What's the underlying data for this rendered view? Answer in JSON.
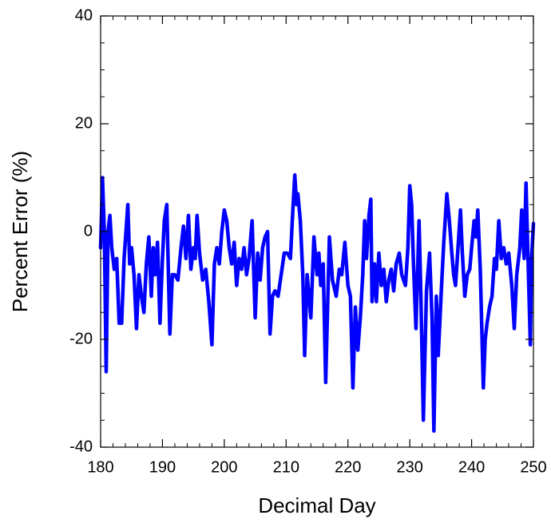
{
  "chart_data": {
    "type": "line",
    "xlabel": "Decimal Day",
    "ylabel": "Percent Error (%)",
    "xlim": [
      180,
      250
    ],
    "xticks": [
      180,
      190,
      200,
      210,
      220,
      230,
      240,
      250
    ],
    "ylim": [
      -40,
      40
    ],
    "yticks": [
      -40,
      -20,
      0,
      20,
      40
    ],
    "x": [
      180.0,
      180.3,
      180.6,
      180.9,
      181.2,
      181.5,
      181.8,
      182.2,
      182.6,
      183.0,
      183.4,
      183.8,
      184.1,
      184.4,
      184.7,
      185.0,
      185.4,
      185.8,
      186.2,
      186.6,
      187.0,
      187.4,
      187.8,
      188.2,
      188.5,
      188.8,
      189.2,
      189.6,
      190.0,
      190.3,
      190.7,
      191.2,
      191.6,
      192.0,
      192.5,
      193.0,
      193.4,
      193.8,
      194.2,
      194.6,
      195.0,
      195.3,
      195.6,
      196.0,
      196.5,
      197.0,
      197.5,
      198.0,
      198.4,
      198.8,
      199.2,
      199.6,
      200.0,
      200.4,
      200.8,
      201.2,
      201.6,
      202.0,
      202.4,
      202.8,
      203.2,
      203.6,
      204.0,
      204.5,
      205.0,
      205.4,
      205.8,
      206.2,
      206.6,
      207.0,
      207.4,
      207.8,
      208.2,
      208.7,
      209.2,
      209.7,
      210.2,
      210.7,
      211.0,
      211.4,
      211.7,
      211.9,
      212.3,
      212.7,
      213.0,
      213.4,
      213.7,
      214.0,
      214.5,
      215.0,
      215.3,
      215.6,
      216.0,
      216.4,
      217.0,
      217.5,
      218.1,
      218.6,
      219.0,
      219.5,
      220.0,
      220.4,
      220.8,
      221.2,
      221.6,
      222.0,
      222.4,
      222.7,
      223.0,
      223.4,
      223.7,
      223.9,
      224.3,
      224.6,
      225.0,
      225.4,
      225.8,
      226.2,
      226.6,
      227.0,
      227.4,
      227.8,
      228.3,
      228.7,
      229.0,
      229.3,
      229.7,
      230.0,
      230.3,
      230.6,
      231.0,
      231.5,
      231.8,
      232.2,
      232.7,
      233.2,
      233.6,
      233.9,
      234.3,
      234.6,
      234.9,
      235.1,
      235.5,
      236.0,
      236.4,
      236.8,
      237.1,
      237.4,
      237.8,
      238.2,
      238.5,
      238.9,
      239.3,
      239.7,
      240.0,
      240.4,
      240.7,
      241.0,
      241.4,
      241.9,
      242.2,
      242.5,
      242.9,
      243.3,
      243.7,
      244.0,
      244.4,
      244.8,
      245.2,
      245.6,
      246.0,
      246.5,
      246.9,
      247.3,
      247.8,
      248.1,
      248.5,
      248.8,
      249.1,
      249.5,
      249.7,
      250.0
    ],
    "series": [
      {
        "color": "#0000ff",
        "values": [
          -3,
          10,
          0,
          -26,
          0,
          3,
          -3,
          -7,
          -5,
          -17,
          -17,
          -5,
          0,
          5,
          -6,
          -3,
          -8,
          -18,
          -8,
          -12,
          -15,
          -6,
          -1,
          -12,
          -3,
          -8,
          -2,
          -17,
          -5,
          2,
          5,
          -19,
          -8,
          -8,
          -9,
          -3,
          1,
          -5,
          3,
          -7,
          -3,
          -5,
          3,
          -4,
          -9,
          -7,
          -13,
          -21,
          -6,
          -3,
          -6,
          0,
          4,
          2,
          -3,
          -6,
          -2,
          -10,
          -5,
          -7,
          -3,
          -8,
          -5,
          2,
          -16,
          -4,
          -9,
          -3,
          -1,
          0,
          -19,
          -12,
          -11,
          -12,
          -8,
          -4,
          -4,
          -5,
          2,
          10.5,
          5,
          7,
          2,
          -8,
          -23,
          -8,
          -12,
          -16,
          -1,
          -8,
          -4,
          -10,
          -6,
          -28,
          -1,
          -9,
          -12,
          -7,
          -8,
          -2,
          -10,
          -12,
          -29,
          -14,
          -22,
          -16,
          -8,
          2,
          -5,
          3,
          6,
          -13,
          -6,
          -13,
          -4,
          -10,
          -7,
          -13,
          -9,
          -7,
          -11,
          -6,
          -4,
          -8,
          -9,
          -10,
          -3,
          8.5,
          5,
          -6,
          -18,
          2,
          -12,
          -35,
          -11,
          -4,
          -16,
          -37,
          -12,
          -23,
          -16,
          -11,
          -2,
          7,
          2,
          -4,
          -8,
          -10,
          -3,
          4,
          -4,
          -12,
          -8,
          -7,
          -3,
          2,
          -1,
          4,
          -7,
          -29,
          -20,
          -17,
          -14,
          -12,
          -5,
          -7,
          2,
          -5,
          -3,
          -6,
          -4,
          -10,
          -18,
          -8,
          -3,
          4,
          -5,
          9,
          -4,
          -21,
          -5,
          1.5
        ]
      }
    ]
  }
}
